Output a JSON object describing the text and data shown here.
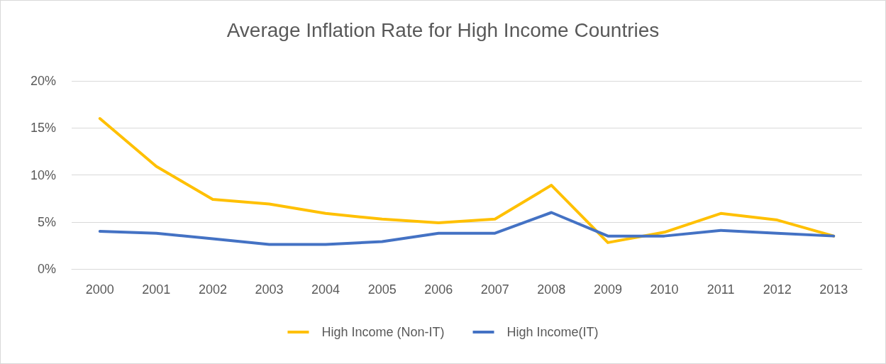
{
  "chart_data": {
    "type": "line",
    "title": "Average Inflation Rate for High Income Countries",
    "categories": [
      "2000",
      "2001",
      "2002",
      "2003",
      "2004",
      "2005",
      "2006",
      "2007",
      "2008",
      "2009",
      "2010",
      "2011",
      "2012",
      "2013"
    ],
    "series": [
      {
        "name": "High Income (Non-IT)",
        "color": "#ffc000",
        "values": [
          16.0,
          10.9,
          7.4,
          6.9,
          5.9,
          5.3,
          4.9,
          5.3,
          8.9,
          2.8,
          3.9,
          5.9,
          5.2,
          3.5
        ]
      },
      {
        "name": "High Income(IT)",
        "color": "#4472c4",
        "values": [
          4.0,
          3.8,
          3.2,
          2.6,
          2.6,
          2.9,
          3.8,
          3.8,
          6.0,
          3.5,
          3.5,
          4.1,
          3.8,
          3.5
        ]
      }
    ],
    "ylim": [
      0,
      20
    ],
    "yticks": [
      {
        "value": 0,
        "label": "0%"
      },
      {
        "value": 5,
        "label": "5%"
      },
      {
        "value": 10,
        "label": "10%"
      },
      {
        "value": 15,
        "label": "15%"
      },
      {
        "value": 20,
        "label": "20%"
      }
    ],
    "grid": "y",
    "legend": "bottom",
    "marker": "none",
    "line_style": "solid"
  }
}
